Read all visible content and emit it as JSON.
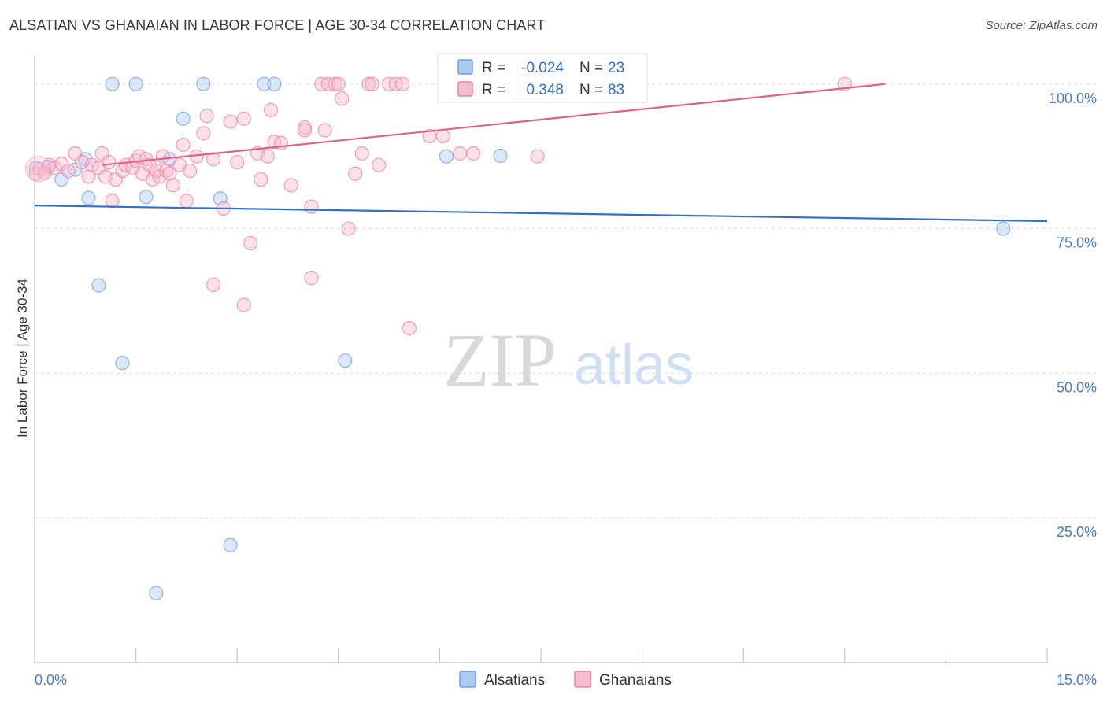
{
  "title": "ALSATIAN VS GHANAIAN IN LABOR FORCE | AGE 30-34 CORRELATION CHART",
  "source": "Source: ZipAtlas.com",
  "watermark": {
    "zip": "ZIP",
    "atlas": "atlas"
  },
  "colors": {
    "alsatian": "#6f9fe0",
    "alsatian_fill": "#aecbf2",
    "ghanaian": "#ee7fa5",
    "ghanaian_fill": "#f8bcd0",
    "alsatian_line": "#2e6fcf",
    "ghanaian_line": "#e0608e",
    "tick_text": "#4a7cc9",
    "grid": "#dddddd"
  },
  "legend_box": {
    "rows": [
      {
        "series": "Alsatians",
        "r_label": "R =",
        "r_value": "-0.024",
        "n_label": "N =",
        "n_value": "23"
      },
      {
        "series": "Ghanaians",
        "r_label": "R =",
        "r_value": "0.348",
        "n_label": "N =",
        "n_value": "83"
      }
    ]
  },
  "chart_data": {
    "type": "scatter",
    "title": "ALSATIAN VS GHANAIAN IN LABOR FORCE | AGE 30-34 CORRELATION CHART",
    "xlabel": "",
    "ylabel": "In Labor Force | Age 30-34",
    "xlim": [
      0,
      15
    ],
    "ylim": [
      0,
      105
    ],
    "x_tick_labels": [
      {
        "value": 0,
        "label": "0.0%"
      },
      {
        "value": 15,
        "label": "15.0%"
      }
    ],
    "y_tick_labels": [
      {
        "value": 25,
        "label": "25.0%"
      },
      {
        "value": 50,
        "label": "50.0%"
      },
      {
        "value": 75,
        "label": "75.0%"
      },
      {
        "value": 100,
        "label": "100.0%"
      }
    ],
    "grid": true,
    "legend": "bottom-center",
    "series": [
      {
        "name": "Alsatians",
        "color": "#6f9fe0",
        "points": [
          [
            0.02,
            85.5
          ],
          [
            0.2,
            85.7
          ],
          [
            0.4,
            83.5
          ],
          [
            0.6,
            85.2
          ],
          [
            0.75,
            87.0
          ],
          [
            0.8,
            80.3
          ],
          [
            1.15,
            100
          ],
          [
            1.5,
            100
          ],
          [
            2.5,
            100
          ],
          [
            3.4,
            100
          ],
          [
            3.55,
            100
          ],
          [
            2.2,
            94.0
          ],
          [
            2.0,
            87.0
          ],
          [
            1.65,
            80.5
          ],
          [
            2.75,
            80.2
          ],
          [
            0.95,
            65.2
          ],
          [
            1.3,
            51.8
          ],
          [
            4.6,
            52.2
          ],
          [
            2.9,
            20.3
          ],
          [
            1.8,
            12.0
          ],
          [
            6.1,
            87.5
          ],
          [
            6.9,
            87.6
          ],
          [
            14.35,
            75.0
          ]
        ],
        "trend": {
          "x": [
            0,
            15
          ],
          "y": [
            79.0,
            76.3
          ]
        }
      },
      {
        "name": "Ghanaians",
        "color": "#ee7fa5",
        "points": [
          [
            0.02,
            84.5
          ],
          [
            0.08,
            85.3
          ],
          [
            0.15,
            84.6
          ],
          [
            0.22,
            86.0
          ],
          [
            0.3,
            85.5
          ],
          [
            0.4,
            86.2
          ],
          [
            0.5,
            85.0
          ],
          [
            0.6,
            88.0
          ],
          [
            0.7,
            86.5
          ],
          [
            0.8,
            84.0
          ],
          [
            0.85,
            86.0
          ],
          [
            0.95,
            85.5
          ],
          [
            1.0,
            88.0
          ],
          [
            1.05,
            84.0
          ],
          [
            1.1,
            86.5
          ],
          [
            1.2,
            83.5
          ],
          [
            1.3,
            85.0
          ],
          [
            1.35,
            86.0
          ],
          [
            1.45,
            85.5
          ],
          [
            1.5,
            86.8
          ],
          [
            1.55,
            87.5
          ],
          [
            1.6,
            84.5
          ],
          [
            1.65,
            87.0
          ],
          [
            1.7,
            86.0
          ],
          [
            1.75,
            83.5
          ],
          [
            1.8,
            85.0
          ],
          [
            1.85,
            84.0
          ],
          [
            1.9,
            87.5
          ],
          [
            1.95,
            85.0
          ],
          [
            2.0,
            84.5
          ],
          [
            2.05,
            82.5
          ],
          [
            2.15,
            86.0
          ],
          [
            2.2,
            89.5
          ],
          [
            2.3,
            85.0
          ],
          [
            2.4,
            87.5
          ],
          [
            2.5,
            91.5
          ],
          [
            2.55,
            94.5
          ],
          [
            2.65,
            87.0
          ],
          [
            2.8,
            78.5
          ],
          [
            2.9,
            93.5
          ],
          [
            3.0,
            86.5
          ],
          [
            3.1,
            94.0
          ],
          [
            3.2,
            72.5
          ],
          [
            3.3,
            88.0
          ],
          [
            3.35,
            83.5
          ],
          [
            3.45,
            87.5
          ],
          [
            3.5,
            95.5
          ],
          [
            3.55,
            90.0
          ],
          [
            3.65,
            89.8
          ],
          [
            3.8,
            82.5
          ],
          [
            4.0,
            92.5
          ],
          [
            4.1,
            78.8
          ],
          [
            4.25,
            100
          ],
          [
            4.35,
            100
          ],
          [
            4.45,
            100
          ],
          [
            4.5,
            100
          ],
          [
            4.55,
            97.5
          ],
          [
            4.65,
            75.0
          ],
          [
            4.75,
            84.5
          ],
          [
            4.85,
            88.0
          ],
          [
            4.95,
            100
          ],
          [
            5.0,
            100
          ],
          [
            5.1,
            86.0
          ],
          [
            5.25,
            100
          ],
          [
            5.35,
            100
          ],
          [
            5.45,
            100
          ],
          [
            5.55,
            57.8
          ],
          [
            5.85,
            91.0
          ],
          [
            6.05,
            91.0
          ],
          [
            6.3,
            88.0
          ],
          [
            6.5,
            88.0
          ],
          [
            6.9,
            100
          ],
          [
            7.2,
            100
          ],
          [
            7.45,
            87.5
          ],
          [
            12.0,
            100
          ],
          [
            2.65,
            65.3
          ],
          [
            3.1,
            61.8
          ],
          [
            4.1,
            66.5
          ],
          [
            2.25,
            79.8
          ],
          [
            1.15,
            79.8
          ],
          [
            6.95,
            100
          ],
          [
            4.0,
            92.0
          ],
          [
            4.3,
            92.0
          ]
        ],
        "trend": {
          "x": [
            1.0,
            12.6
          ],
          "y": [
            86.0,
            100.0
          ]
        }
      }
    ]
  }
}
